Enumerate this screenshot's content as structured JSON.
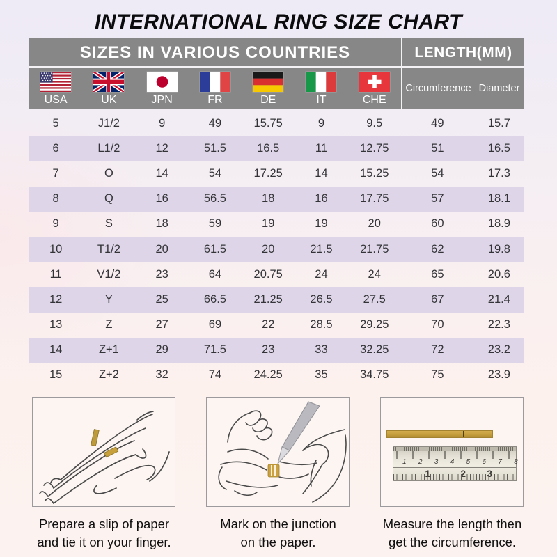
{
  "title": "INTERNATIONAL RING SIZE CHART",
  "table": {
    "left_header": "SIZES IN VARIOUS COUNTRIES",
    "right_header": "LENGTH(MM)",
    "countries": [
      {
        "code": "usa",
        "label": "USA"
      },
      {
        "code": "uk",
        "label": "UK"
      },
      {
        "code": "jpn",
        "label": "JPN"
      },
      {
        "code": "fr",
        "label": "FR"
      },
      {
        "code": "de",
        "label": "DE"
      },
      {
        "code": "it",
        "label": "IT"
      },
      {
        "code": "che",
        "label": "CHE"
      }
    ],
    "length_subheaders": [
      "Circumference",
      "Diameter"
    ],
    "columns": [
      "USA",
      "UK",
      "JPN",
      "FR",
      "DE",
      "IT",
      "CHE",
      "Circumference",
      "Diameter"
    ],
    "rows": [
      [
        "5",
        "J1/2",
        "9",
        "49",
        "15.75",
        "9",
        "9.5",
        "49",
        "15.7"
      ],
      [
        "6",
        "L1/2",
        "12",
        "51.5",
        "16.5",
        "11",
        "12.75",
        "51",
        "16.5"
      ],
      [
        "7",
        "O",
        "14",
        "54",
        "17.25",
        "14",
        "15.25",
        "54",
        "17.3"
      ],
      [
        "8",
        "Q",
        "16",
        "56.5",
        "18",
        "16",
        "17.75",
        "57",
        "18.1"
      ],
      [
        "9",
        "S",
        "18",
        "59",
        "19",
        "19",
        "20",
        "60",
        "18.9"
      ],
      [
        "10",
        "T1/2",
        "20",
        "61.5",
        "20",
        "21.5",
        "21.75",
        "62",
        "19.8"
      ],
      [
        "11",
        "V1/2",
        "23",
        "64",
        "20.75",
        "24",
        "24",
        "65",
        "20.6"
      ],
      [
        "12",
        "Y",
        "25",
        "66.5",
        "21.25",
        "26.5",
        "27.5",
        "67",
        "21.4"
      ],
      [
        "13",
        "Z",
        "27",
        "69",
        "22",
        "28.5",
        "29.25",
        "70",
        "22.3"
      ],
      [
        "14",
        "Z+1",
        "29",
        "71.5",
        "23",
        "33",
        "32.25",
        "72",
        "23.2"
      ],
      [
        "15",
        "Z+2",
        "32",
        "74",
        "24.25",
        "35",
        "34.75",
        "75",
        "23.9"
      ]
    ]
  },
  "steps": [
    {
      "caption_line1": "Prepare a slip of paper",
      "caption_line2": "and tie it on your finger."
    },
    {
      "caption_line1": "Mark on the junction",
      "caption_line2": "on the paper."
    },
    {
      "caption_line1": "Measure the length then",
      "caption_line2": "get the circumference."
    }
  ],
  "ruler": {
    "top_scale": [
      "1",
      "2",
      "3",
      "4",
      "5",
      "6",
      "7",
      "8"
    ],
    "bottom_scale": [
      "1",
      "2",
      "3"
    ]
  },
  "colors": {
    "header_gray": "#878787",
    "stripe_lavender": "#ded6e8",
    "paper_gold": "#c69f3e",
    "title_black": "#0b0b0d"
  }
}
